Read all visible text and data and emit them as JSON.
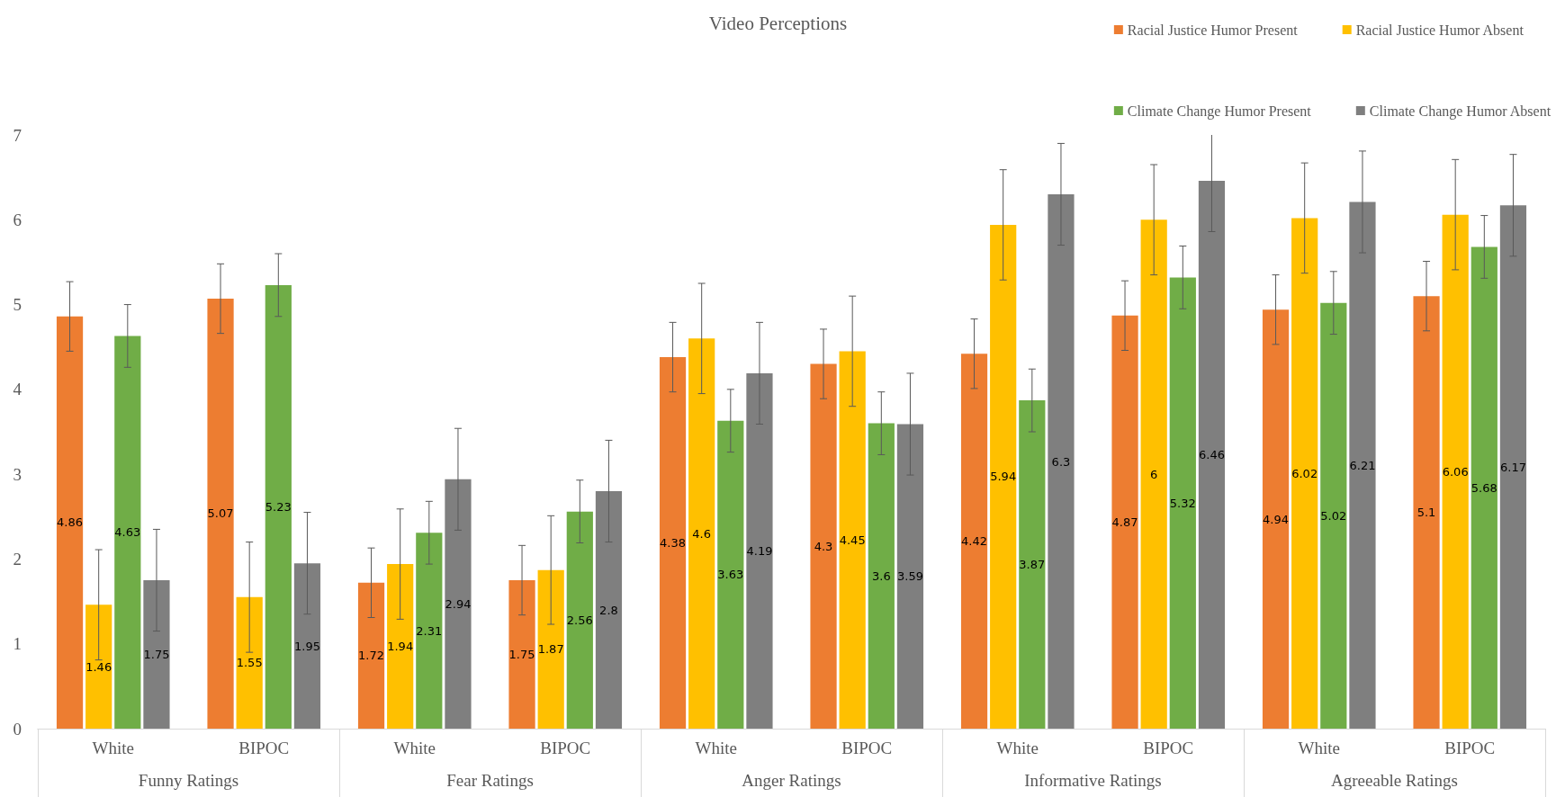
{
  "chart_data": {
    "type": "bar",
    "title": "Video Perceptions",
    "categories": [
      "White",
      "BIPOC",
      "White",
      "BIPOC",
      "White",
      "BIPOC",
      "White",
      "BIPOC",
      "White",
      "BIPOC"
    ],
    "annotations": [
      "Funny Ratings",
      "Fear Ratings",
      "Anger Ratings",
      "Informative Ratings",
      "Agreeable Ratings"
    ],
    "series": [
      {
        "name": "Racial Justice Humor Present",
        "color": "#ed7d31",
        "values": [
          4.86,
          5.07,
          1.72,
          1.75,
          4.38,
          4.3,
          4.42,
          4.87,
          4.94,
          5.1
        ],
        "errors": [
          0.41,
          0.41,
          0.41,
          0.41,
          0.41,
          0.41,
          0.41,
          0.41,
          0.41,
          0.41
        ]
      },
      {
        "name": "Racial Justice Humor Absent",
        "color": "#ffc000",
        "values": [
          1.46,
          1.55,
          1.94,
          1.87,
          4.6,
          4.45,
          5.94,
          6,
          6.02,
          6.06
        ],
        "errors": [
          0.65,
          0.65,
          0.65,
          0.64,
          0.65,
          0.65,
          0.65,
          0.65,
          0.65,
          0.65
        ]
      },
      {
        "name": "Climate Change Humor Present",
        "color": "#70ad47",
        "values": [
          4.63,
          5.23,
          2.31,
          2.56,
          3.63,
          3.6,
          3.87,
          5.32,
          5.02,
          5.68
        ],
        "errors": [
          0.37,
          0.37,
          0.37,
          0.37,
          0.37,
          0.37,
          0.37,
          0.37,
          0.37,
          0.37
        ]
      },
      {
        "name": "Climate Change Humor Absent",
        "color": "#7f7f7f",
        "values": [
          1.75,
          1.95,
          2.94,
          2.8,
          4.19,
          3.59,
          6.3,
          6.46,
          6.21,
          6.17
        ],
        "errors": [
          0.6,
          0.6,
          0.6,
          0.6,
          0.6,
          0.6,
          0.6,
          [
            5.86,
            7
          ],
          0.6,
          0.6
        ]
      }
    ],
    "ylim": [
      0,
      7
    ],
    "yticks": [
      0,
      1,
      2,
      3,
      4,
      5,
      6,
      7
    ],
    "grid": false,
    "legend": "top right",
    "data_labels": true
  }
}
